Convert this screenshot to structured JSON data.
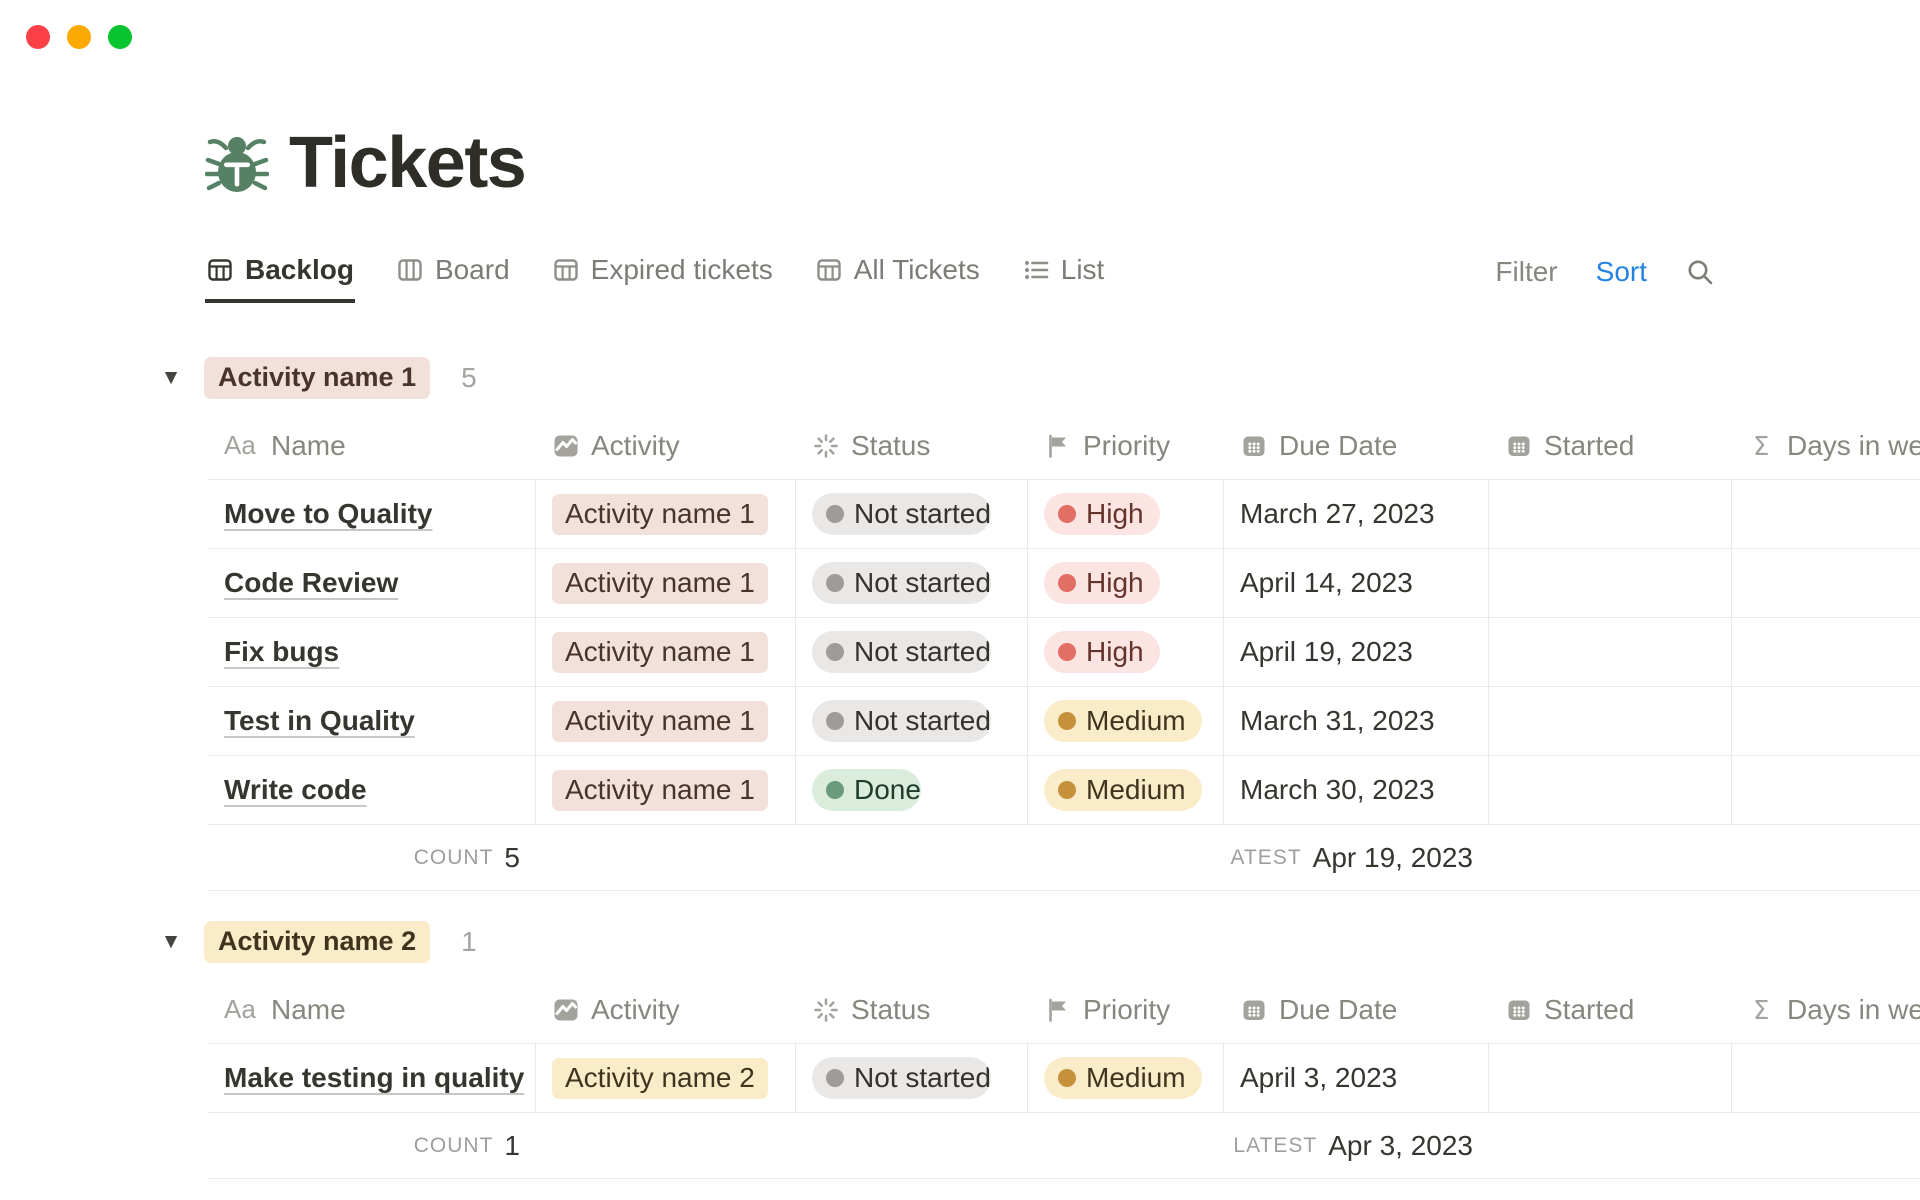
{
  "window": {
    "traffic_lights": [
      {
        "name": "close-button",
        "color": "#FC4048"
      },
      {
        "name": "minimize-button",
        "color": "#FDA903"
      },
      {
        "name": "zoom-button",
        "color": "#06C52F"
      }
    ]
  },
  "page": {
    "title": "Tickets",
    "icon": "bug-icon",
    "icon_color": "#568165"
  },
  "toolbar": {
    "tabs": [
      {
        "label": "Backlog",
        "icon": "table-icon",
        "active": true
      },
      {
        "label": "Board",
        "icon": "board-icon",
        "active": false
      },
      {
        "label": "Expired tickets",
        "icon": "table-icon",
        "active": false
      },
      {
        "label": "All Tickets",
        "icon": "table-icon",
        "active": false
      },
      {
        "label": "List",
        "icon": "list-icon",
        "active": false
      }
    ],
    "filter_label": "Filter",
    "sort_label": "Sort",
    "sort_color": "#2383E2",
    "search_icon": "search-icon"
  },
  "table": {
    "columns": [
      {
        "key": "name",
        "label": "Name",
        "icon": "aa-icon"
      },
      {
        "key": "activity",
        "label": "Activity",
        "icon": "activity-icon"
      },
      {
        "key": "status",
        "label": "Status",
        "icon": "spinner-icon"
      },
      {
        "key": "priority",
        "label": "Priority",
        "icon": "flag-icon"
      },
      {
        "key": "due",
        "label": "Due Date",
        "icon": "calendar-icon"
      },
      {
        "key": "started",
        "label": "Started",
        "icon": "calendar-icon"
      },
      {
        "key": "days",
        "label": "Days in wee",
        "icon": "sigma-icon"
      }
    ]
  },
  "colors": {
    "tags": {
      "brown": {
        "bg": "#F2E1DB",
        "text": "#49332B"
      },
      "yellow": {
        "bg": "#FBECC9",
        "text": "#41331E"
      }
    },
    "status": {
      "gray": {
        "bg": "#E9E8E6",
        "dot": "#9D9C99",
        "text": "#34322E"
      },
      "green": {
        "bg": "#DAEDDC",
        "dot": "#6A9B7C",
        "text": "#1F3C2B"
      }
    },
    "priority": {
      "red": {
        "bg": "#FBE4E1",
        "dot": "#E16F64",
        "text": "#63342C"
      },
      "yellow": {
        "bg": "#FBECC9",
        "dot": "#C5913B",
        "text": "#41331E"
      }
    }
  },
  "groups": [
    {
      "name": "Activity name 1",
      "tag_color": "brown",
      "count": "5",
      "rows": [
        {
          "name": "Move to Quality",
          "activity": "Activity name 1",
          "activity_color": "brown",
          "status": "Not started",
          "status_color": "gray",
          "priority": "High",
          "priority_color": "red",
          "due_date": "March 27, 2023",
          "started": "",
          "days": ""
        },
        {
          "name": "Code Review",
          "activity": "Activity name 1",
          "activity_color": "brown",
          "status": "Not started",
          "status_color": "gray",
          "priority": "High",
          "priority_color": "red",
          "due_date": "April 14, 2023",
          "started": "",
          "days": ""
        },
        {
          "name": "Fix bugs",
          "activity": "Activity name 1",
          "activity_color": "brown",
          "status": "Not started",
          "status_color": "gray",
          "priority": "High",
          "priority_color": "red",
          "due_date": "April 19, 2023",
          "started": "",
          "days": ""
        },
        {
          "name": "Test in Quality",
          "activity": "Activity name 1",
          "activity_color": "brown",
          "status": "Not started",
          "status_color": "gray",
          "priority": "Medium",
          "priority_color": "yellow",
          "due_date": "March 31, 2023",
          "started": "",
          "days": ""
        },
        {
          "name": "Write code",
          "activity": "Activity name 1",
          "activity_color": "brown",
          "status": "Done",
          "status_color": "green",
          "priority": "Medium",
          "priority_color": "yellow",
          "due_date": "March 30, 2023",
          "started": "",
          "days": ""
        }
      ],
      "footer": {
        "count_label": "COUNT",
        "count_value": "5",
        "latest_label": "ATEST",
        "latest_value": "Apr 19, 2023"
      }
    },
    {
      "name": "Activity name 2",
      "tag_color": "yellow",
      "count": "1",
      "rows": [
        {
          "name": "Make testing in quality",
          "activity": "Activity name 2",
          "activity_color": "yellow",
          "status": "Not started",
          "status_color": "gray",
          "priority": "Medium",
          "priority_color": "yellow",
          "due_date": "April 3, 2023",
          "started": "",
          "days": ""
        }
      ],
      "footer": {
        "count_label": "COUNT",
        "count_value": "1",
        "latest_label": "LATEST",
        "latest_value": "Apr 3, 2023"
      }
    }
  ]
}
